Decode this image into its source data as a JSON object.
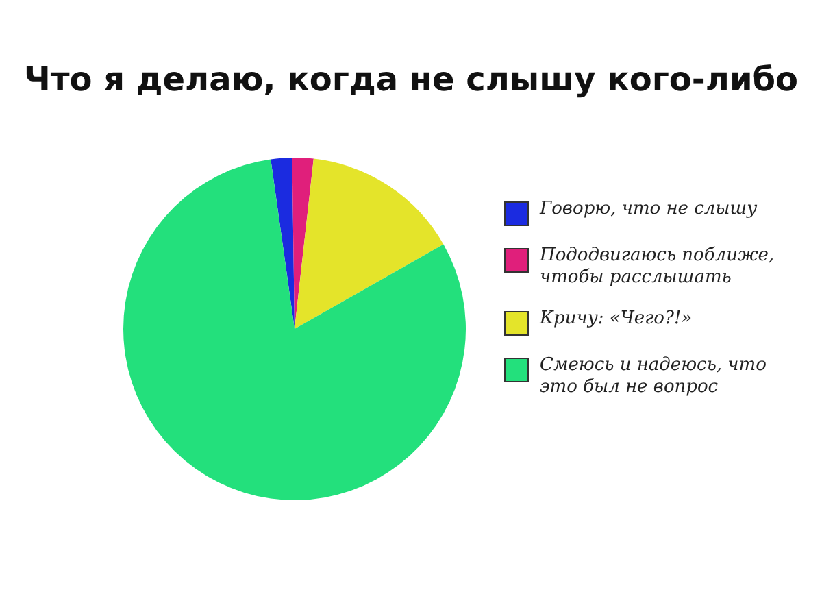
{
  "chart_data": {
    "type": "pie",
    "title": "Что я делаю, когда не слышу кого-либо",
    "categories": [
      "Говорю, что не слышу",
      "Пододвигаюсь поближе, чтобы расслышать",
      "Кричу: «Чего?!»",
      "Смеюсь и надеюсь, что это был не вопрос"
    ],
    "values": [
      2,
      2,
      15,
      81
    ],
    "colors": [
      "#1b2be0",
      "#e01f7b",
      "#e4e42a",
      "#23e07c"
    ],
    "legend": "right"
  }
}
